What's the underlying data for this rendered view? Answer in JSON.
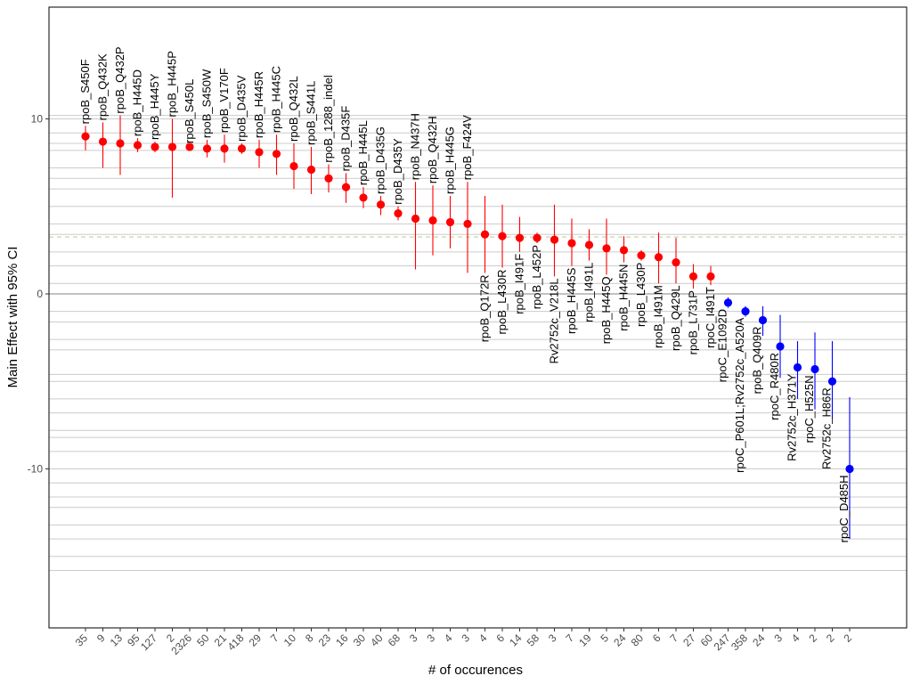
{
  "chart_data": {
    "type": "scatter",
    "title": "",
    "xlabel": "# of occurences",
    "ylabel": "Main Effect with 95% CI",
    "ylim": [
      -19,
      16.5
    ],
    "yticks": [
      -10,
      0,
      10
    ],
    "minor_gridlines": [
      -15.8,
      -15.0,
      -14.0,
      -13.2,
      -12.2,
      -11.6,
      -10.8,
      -9.0,
      -8.2,
      -7.8,
      -6.8,
      -6.0,
      -5.0,
      -4.6,
      -3.2,
      -2.6,
      -1.6,
      -1.0,
      0.6,
      1.6,
      2.4,
      3.4,
      4.0,
      5.0,
      6.0,
      6.6,
      7.2,
      8.2,
      8.6,
      9.2,
      10.2
    ],
    "reference_line": 3.25,
    "grid": true,
    "legend": "none",
    "colors": {
      "positive": "#ff0000",
      "negative": "#0000ff",
      "zero_line": "#9e9e9e",
      "grid": "#cccccc",
      "reference": "#c8d6a8",
      "axis": "#000000"
    },
    "points": [
      {
        "label": "rpoB_S450F",
        "count": "35",
        "y": 9.0,
        "lo": 8.2,
        "hi": 9.6,
        "color": "#ff0000",
        "label_pos": "above"
      },
      {
        "label": "rpoB_Q432K",
        "count": "9",
        "y": 8.7,
        "lo": 7.2,
        "hi": 9.8,
        "color": "#ff0000",
        "label_pos": "above"
      },
      {
        "label": "rpoB_Q432P",
        "count": "13",
        "y": 8.6,
        "lo": 6.8,
        "hi": 10.2,
        "color": "#ff0000",
        "label_pos": "above"
      },
      {
        "label": "rpoB_H445D",
        "count": "95",
        "y": 8.5,
        "lo": 8.1,
        "hi": 8.9,
        "color": "#ff0000",
        "label_pos": "above"
      },
      {
        "label": "rpoB_H445Y",
        "count": "127",
        "y": 8.4,
        "lo": 8.1,
        "hi": 8.7,
        "color": "#ff0000",
        "label_pos": "above"
      },
      {
        "label": "rpoB_H445P",
        "count": "2",
        "y": 8.4,
        "lo": 5.5,
        "hi": 10.0,
        "color": "#ff0000",
        "label_pos": "above"
      },
      {
        "label": "rpoB_S450L",
        "count": "2326",
        "y": 8.4,
        "lo": 8.3,
        "hi": 8.5,
        "color": "#ff0000",
        "label_pos": "above"
      },
      {
        "label": "rpoB_S450W",
        "count": "50",
        "y": 8.3,
        "lo": 7.8,
        "hi": 8.8,
        "color": "#ff0000",
        "label_pos": "above"
      },
      {
        "label": "rpoB_V170F",
        "count": "21",
        "y": 8.3,
        "lo": 7.5,
        "hi": 9.1,
        "color": "#ff0000",
        "label_pos": "above"
      },
      {
        "label": "rpoB_D435V",
        "count": "418",
        "y": 8.3,
        "lo": 8.0,
        "hi": 8.6,
        "color": "#ff0000",
        "label_pos": "above"
      },
      {
        "label": "rpoB_H445R",
        "count": "29",
        "y": 8.1,
        "lo": 7.2,
        "hi": 8.8,
        "color": "#ff0000",
        "label_pos": "above"
      },
      {
        "label": "rpoB_H445C",
        "count": "7",
        "y": 8.0,
        "lo": 6.8,
        "hi": 9.1,
        "color": "#ff0000",
        "label_pos": "above"
      },
      {
        "label": "rpoB_Q432L",
        "count": "10",
        "y": 7.3,
        "lo": 6.0,
        "hi": 8.6,
        "color": "#ff0000",
        "label_pos": "above"
      },
      {
        "label": "rpoB_S441L",
        "count": "8",
        "y": 7.1,
        "lo": 5.7,
        "hi": 8.4,
        "color": "#ff0000",
        "label_pos": "above"
      },
      {
        "label": "rpoB_1288_indel",
        "count": "23",
        "y": 6.6,
        "lo": 5.8,
        "hi": 7.4,
        "color": "#ff0000",
        "label_pos": "above"
      },
      {
        "label": "rpoB_D435F",
        "count": "16",
        "y": 6.1,
        "lo": 5.2,
        "hi": 6.9,
        "color": "#ff0000",
        "label_pos": "above"
      },
      {
        "label": "rpoB_H445L",
        "count": "30",
        "y": 5.5,
        "lo": 4.9,
        "hi": 6.1,
        "color": "#ff0000",
        "label_pos": "above"
      },
      {
        "label": "rpoB_D435G",
        "count": "40",
        "y": 5.1,
        "lo": 4.5,
        "hi": 5.6,
        "color": "#ff0000",
        "label_pos": "above"
      },
      {
        "label": "rpoB_D435Y",
        "count": "68",
        "y": 4.6,
        "lo": 4.2,
        "hi": 5.0,
        "color": "#ff0000",
        "label_pos": "above"
      },
      {
        "label": "rpoB_N437H",
        "count": "3",
        "y": 4.3,
        "lo": 1.4,
        "hi": 6.4,
        "color": "#ff0000",
        "label_pos": "above"
      },
      {
        "label": "rpoB_Q432H",
        "count": "3",
        "y": 4.2,
        "lo": 2.2,
        "hi": 6.2,
        "color": "#ff0000",
        "label_pos": "above"
      },
      {
        "label": "rpoB_H445G",
        "count": "4",
        "y": 4.1,
        "lo": 2.6,
        "hi": 5.6,
        "color": "#ff0000",
        "label_pos": "above"
      },
      {
        "label": "rpoB_F424V",
        "count": "3",
        "y": 4.0,
        "lo": 1.2,
        "hi": 6.4,
        "color": "#ff0000",
        "label_pos": "above"
      },
      {
        "label": "rpoB_Q172R",
        "count": "4",
        "y": 3.4,
        "lo": 1.2,
        "hi": 5.6,
        "color": "#ff0000",
        "label_pos": "below"
      },
      {
        "label": "rpoB_L430R",
        "count": "6",
        "y": 3.3,
        "lo": 1.5,
        "hi": 5.1,
        "color": "#ff0000",
        "label_pos": "below"
      },
      {
        "label": "rpoB_I491F",
        "count": "14",
        "y": 3.2,
        "lo": 2.4,
        "hi": 4.4,
        "color": "#ff0000",
        "label_pos": "below"
      },
      {
        "label": "rpoB_L452P",
        "count": "58",
        "y": 3.2,
        "lo": 2.9,
        "hi": 3.5,
        "color": "#ff0000",
        "label_pos": "below"
      },
      {
        "label": "Rv2752c_V218L",
        "count": "3",
        "y": 3.1,
        "lo": 1.0,
        "hi": 5.1,
        "color": "#ff0000",
        "label_pos": "below"
      },
      {
        "label": "rpoB_H445S",
        "count": "7",
        "y": 2.9,
        "lo": 1.6,
        "hi": 4.3,
        "color": "#ff0000",
        "label_pos": "below"
      },
      {
        "label": "rpoB_I491L",
        "count": "19",
        "y": 2.8,
        "lo": 1.9,
        "hi": 3.7,
        "color": "#ff0000",
        "label_pos": "below"
      },
      {
        "label": "rpoB_H445Q",
        "count": "5",
        "y": 2.6,
        "lo": 1.1,
        "hi": 4.3,
        "color": "#ff0000",
        "label_pos": "below"
      },
      {
        "label": "rpoB_H445N",
        "count": "24",
        "y": 2.5,
        "lo": 1.8,
        "hi": 3.3,
        "color": "#ff0000",
        "label_pos": "below"
      },
      {
        "label": "rpoB_L430P",
        "count": "80",
        "y": 2.2,
        "lo": 1.9,
        "hi": 2.5,
        "color": "#ff0000",
        "label_pos": "below"
      },
      {
        "label": "rpoB_I491M",
        "count": "6",
        "y": 2.1,
        "lo": 0.6,
        "hi": 3.5,
        "color": "#ff0000",
        "label_pos": "below"
      },
      {
        "label": "rpoB_Q429L",
        "count": "7",
        "y": 1.8,
        "lo": 0.6,
        "hi": 3.2,
        "color": "#ff0000",
        "label_pos": "below"
      },
      {
        "label": "rpoB_L731P",
        "count": "27",
        "y": 1.0,
        "lo": 0.3,
        "hi": 1.7,
        "color": "#ff0000",
        "label_pos": "below"
      },
      {
        "label": "rpoC_I491T",
        "count": "60",
        "y": 1.0,
        "lo": 0.5,
        "hi": 1.6,
        "color": "#ff0000",
        "label_pos": "below"
      },
      {
        "label": "rpoC_E1092D",
        "count": "247",
        "y": -0.5,
        "lo": -0.8,
        "hi": -0.2,
        "color": "#0000ff",
        "label_pos": "left"
      },
      {
        "label": "rpoC_P601L;Rv2752c_A520A",
        "count": "358",
        "y": -1.0,
        "lo": -1.3,
        "hi": -0.7,
        "color": "#0000ff",
        "label_pos": "left"
      },
      {
        "label": "rpoB_Q409R",
        "count": "24",
        "y": -1.5,
        "lo": -2.4,
        "hi": -0.7,
        "color": "#0000ff",
        "label_pos": "left"
      },
      {
        "label": "rpoC_R480R",
        "count": "3",
        "y": -3.0,
        "lo": -4.8,
        "hi": -1.2,
        "color": "#0000ff",
        "label_pos": "left"
      },
      {
        "label": "Rv2752c_H371Y",
        "count": "4",
        "y": -4.2,
        "lo": -6.0,
        "hi": -2.7,
        "color": "#0000ff",
        "label_pos": "left"
      },
      {
        "label": "rpoC_H525N",
        "count": "2",
        "y": -4.3,
        "lo": -6.6,
        "hi": -2.2,
        "color": "#0000ff",
        "label_pos": "left"
      },
      {
        "label": "Rv2752c_H86R",
        "count": "2",
        "y": -5.0,
        "lo": -7.1,
        "hi": -2.7,
        "color": "#0000ff",
        "label_pos": "left"
      },
      {
        "label": "rpoC_D485H",
        "count": "2",
        "y": -10.0,
        "lo": -14.0,
        "hi": -5.9,
        "color": "#0000ff",
        "label_pos": "left"
      }
    ]
  }
}
